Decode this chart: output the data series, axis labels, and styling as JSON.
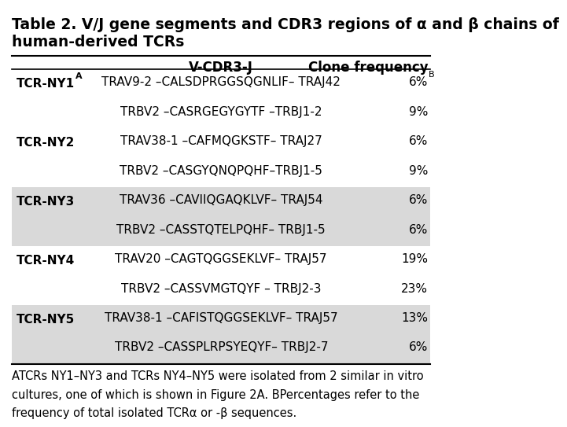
{
  "title_line1": "Table 2. V/J gene segments and CDR3 regions of α and β chains of",
  "title_line2": "human-derived TCRs",
  "col_header_vcdr3": "V-CDR3-J",
  "col_header_clone": "Clone frequency",
  "rows": [
    {
      "tcr": "TCR-NY1",
      "tcr_superscript": "A",
      "chain1_vcdr3": "TRAV9-2 –CALSDPRGGSQGNLIF– TRAJ42",
      "chain1_freq": "6%",
      "chain1_freq_superscript": "B",
      "chain2_vcdr3": "TRBV2 –CASRGEGYGYTF –TRBJ1-2",
      "chain2_freq": "9%",
      "shade": false
    },
    {
      "tcr": "TCR-NY2",
      "tcr_superscript": "",
      "chain1_vcdr3": "TRAV38-1 –CAFMQGKSTF– TRAJ27",
      "chain1_freq": "6%",
      "chain1_freq_superscript": "",
      "chain2_vcdr3": "TRBV2 –CASGYQNQPQHF–TRBJ1-5",
      "chain2_freq": "9%",
      "shade": false
    },
    {
      "tcr": "TCR-NY3",
      "tcr_superscript": "",
      "chain1_vcdr3": "TRAV36 –CAVIIQGAQKLVF– TRAJ54",
      "chain1_freq": "6%",
      "chain1_freq_superscript": "",
      "chain2_vcdr3": "TRBV2 –CASSTQTELPQHF– TRBJ1-5",
      "chain2_freq": "6%",
      "shade": true
    },
    {
      "tcr": "TCR-NY4",
      "tcr_superscript": "",
      "chain1_vcdr3": "TRAV20 –CAGTQGGSEKLVF– TRAJ57",
      "chain1_freq": "19%",
      "chain1_freq_superscript": "",
      "chain2_vcdr3": "TRBV2 –CASSVMGTQYF – TRBJ2-3",
      "chain2_freq": "23%",
      "shade": false
    },
    {
      "tcr": "TCR-NY5",
      "tcr_superscript": "",
      "chain1_vcdr3": "TRAV38-1 –CAFISTQGGSEKLVF– TRAJ57",
      "chain1_freq": "13%",
      "chain1_freq_superscript": "",
      "chain2_vcdr3": "TRBV2 –CASSPLRPSYEQYF– TRBJ2-7",
      "chain2_freq": "6%",
      "shade": true
    }
  ],
  "footnote_a": "ATCRs NY1–NY3 and TCRs NY4–NY5 were isolated from 2 similar in vitro",
  "footnote_b": "cultures, one of which is shown in Figure 2A. BPercentages refer to the",
  "footnote_c": "frequency of total isolated TCRα or -β sequences.",
  "bg_color": "#ffffff",
  "shade_color": "#d9d9d9",
  "border_color": "#000000",
  "text_color": "#000000",
  "title_fontsize": 13.5,
  "header_fontsize": 12,
  "body_fontsize": 11,
  "footnote_fontsize": 10.5
}
